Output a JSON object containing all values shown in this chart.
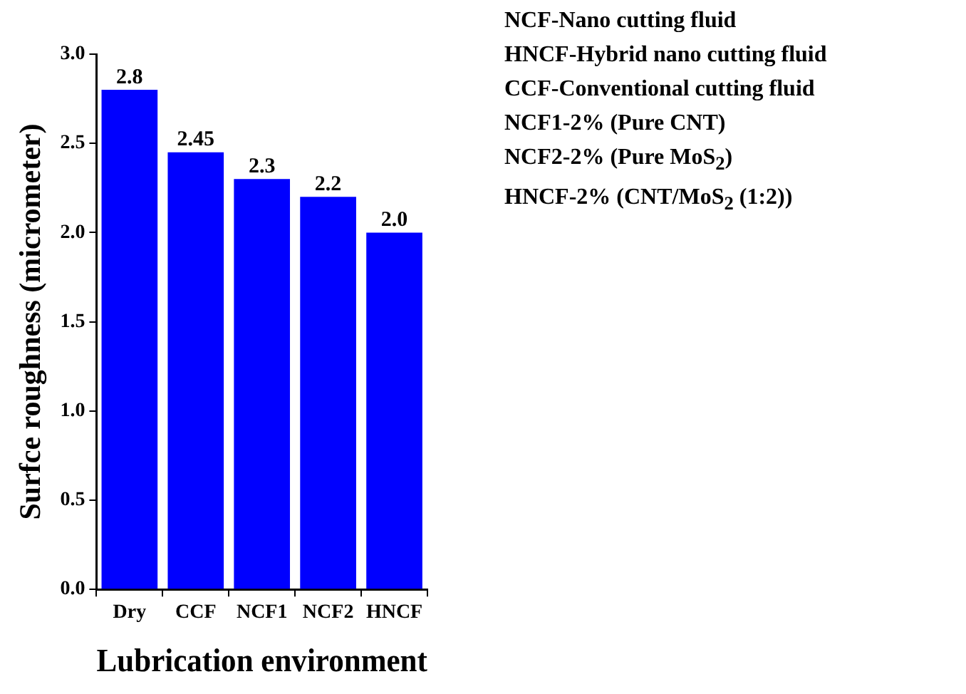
{
  "chart_data": {
    "type": "bar",
    "xlabel": "Lubrication environment",
    "ylabel": "Surfce roughness (micrometer)",
    "categories": [
      "Dry",
      "CCF",
      "NCF1",
      "NCF2",
      "HNCF"
    ],
    "values": [
      2.8,
      2.45,
      2.3,
      2.2,
      2.0
    ],
    "value_labels": [
      "2.8",
      "2.45",
      "2.3",
      "2.2",
      "2.0"
    ],
    "color": "#0000ff",
    "ylim": [
      0,
      3.0
    ],
    "yticks": [
      {
        "value": 0,
        "label": "0.0"
      },
      {
        "value": 0.5,
        "label": "0.5"
      },
      {
        "value": 1,
        "label": "1.0"
      },
      {
        "value": 1.5,
        "label": "1.5"
      },
      {
        "value": 2,
        "label": "2.0"
      },
      {
        "value": 2.5,
        "label": "2.5"
      },
      {
        "value": 3,
        "label": "3.0"
      }
    ],
    "grid": false,
    "legend": false,
    "annotations": [
      "NCF-Nano cutting fluid",
      "HNCF-Hybrid nano cutting fluid",
      "CCF-Conventional cutting fluid",
      "NCF1-2% (Pure CNT)",
      "NCF2-2% (Pure MoS$_{2}$)",
      "HNCF-2% (CNT/MoS$_{2}$ (1:2))"
    ]
  }
}
